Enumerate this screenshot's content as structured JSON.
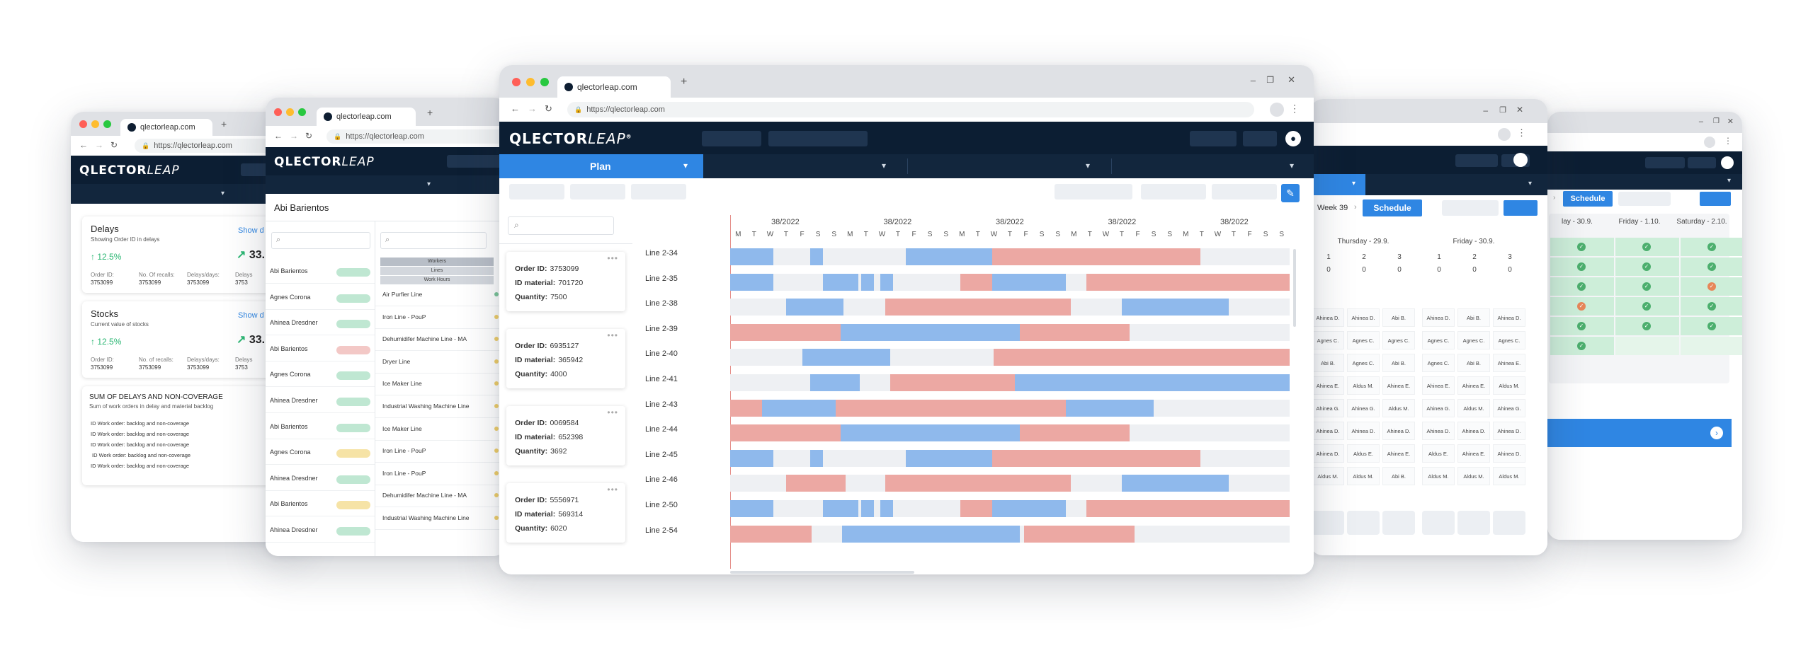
{
  "browser": {
    "url_short": "qlectorleap.com",
    "url_full": "https://qlectorleap.com"
  },
  "brand": {
    "logo_main": "QLECTOR",
    "logo_leap": "LEAP"
  },
  "left_win": {
    "delays": {
      "title": "Delays",
      "subtitle": "Showing Order ID in delays",
      "link": "Show d",
      "percent": "12.5%",
      "big": "33.",
      "metrics": [
        {
          "label": "Order ID:",
          "value": "3753099"
        },
        {
          "label": "No. Of recalls:",
          "value": "3753099"
        },
        {
          "label": "Delays/days:",
          "value": "3753099"
        },
        {
          "label": "Delays",
          "value": "3753"
        }
      ]
    },
    "stocks": {
      "title": "Stocks",
      "subtitle": "Current value of stocks",
      "link": "Show d",
      "percent": "12.5%",
      "big": "33.",
      "metrics": [
        {
          "label": "Order ID:",
          "value": "3753099"
        },
        {
          "label": "No. of recalls:",
          "value": "3753099"
        },
        {
          "label": "Delays/days:",
          "value": "3753099"
        },
        {
          "label": "Delays",
          "value": "3753"
        }
      ]
    },
    "sum": {
      "title": "SUM OF DELAYS AND NON-COVERAGE",
      "subtitle": "Sum of work orders in delay and material backlog",
      "items": [
        "ID Work order: backlog and non-coverage",
        "ID Work order: backlog and non-coverage",
        "ID Work order: backlog and non-coverage",
        "ID Work order: backlog and non-coverage",
        "ID Work order: backlog and non-coverage"
      ]
    }
  },
  "second_win": {
    "person": "Abi Barientos",
    "workers_tabs": [
      "Workers",
      "Lines",
      "Work Hours"
    ],
    "people": [
      "Abi Barientos",
      "Agnes Corona",
      "Ahinea Dresdner",
      "Abi Barientos",
      "Agnes Corona",
      "Ahinea Dresdner",
      "Abi Barientos",
      "Agnes Corona",
      "Ahinea Dresdner",
      "Abi Barientos",
      "Ahinea Dresdner"
    ],
    "people_colors": [
      "#bfe7d2",
      "#bfe7d2",
      "#bfe7d2",
      "#f3c8c6",
      "#bfe7d2",
      "#bfe7d2",
      "#bfe7d2",
      "#f6e3a6",
      "#bfe7d2",
      "#f6e3a6",
      "#bfe7d2"
    ],
    "lines": [
      "Air Purfier Line",
      "Iron Line - PouP",
      "Dehumidifer Machine Line - MA",
      "Dryer Line",
      "Ice Maker Line",
      "Industrial Washing Machine Line",
      "Ice Maker Line",
      "Iron Line - PouP",
      "Iron Line - PouP",
      "Dehumidifer Machine Line - MA",
      "Industrial Washing Machine Line"
    ]
  },
  "main_win": {
    "plan_label": "Plan",
    "weeks": [
      "38/2022",
      "38/2022",
      "38/2022",
      "38/2022",
      "38/2022"
    ],
    "days": [
      "M",
      "T",
      "W",
      "T",
      "F",
      "S",
      "S",
      "M",
      "T",
      "W",
      "T",
      "F",
      "S",
      "S",
      "M",
      "T",
      "W",
      "T",
      "F",
      "S",
      "S",
      "M",
      "T",
      "W",
      "T",
      "F",
      "S",
      "S",
      "M",
      "T",
      "W",
      "T",
      "F",
      "S",
      "S"
    ],
    "orders": [
      {
        "order_label": "Order ID:",
        "order_id": "3753099",
        "mat_label": "ID material:",
        "material": "701720",
        "qty_label": "Quantity:",
        "quantity": "7500"
      },
      {
        "order_label": "Order ID:",
        "order_id": "6935127",
        "mat_label": "ID material:",
        "material": "365942",
        "qty_label": "Quantity:",
        "quantity": "4000"
      },
      {
        "order_label": "Order ID:",
        "order_id": "0069584",
        "mat_label": "ID material:",
        "material": "652398",
        "qty_label": "Quantity:",
        "quantity": "3692"
      },
      {
        "order_label": "Order ID:",
        "order_id": "5556971",
        "mat_label": "ID material:",
        "material": "569314",
        "qty_label": "Quantity:",
        "quantity": "6020"
      }
    ],
    "lines": [
      "Line 2-34",
      "Line 2-35",
      "Line 2-38",
      "Line 2-39",
      "Line 2-40",
      "Line 2-41",
      "Line 2-43",
      "Line 2-44",
      "Line 2-45",
      "Line 2-46",
      "Line 2-50",
      "Line 2-54"
    ],
    "color_blue": "#8fb9ec",
    "color_red": "#eca8a3"
  },
  "right_win": {
    "week": "Week 39",
    "schedule": "Schedule",
    "days": [
      {
        "name": "Thursday - 29.9.",
        "shifts": [
          "1",
          "2",
          "3"
        ],
        "counts": [
          "0",
          "0",
          "0"
        ]
      },
      {
        "name": "Friday - 30.9.",
        "shifts": [
          "1",
          "2",
          "3"
        ],
        "counts": [
          "0",
          "0",
          "0"
        ]
      }
    ],
    "names_cols": [
      [
        "Ahinea D.",
        "Agnes C.",
        "Abi B.",
        "Ahinea E.",
        "Ahinea G.",
        "Ahinea D.",
        "Ahinea D.",
        "Aldus M."
      ],
      [
        "Ahinea D.",
        "Agnes C.",
        "Agnes C.",
        "Aldus M.",
        "Ahinea G.",
        "Ahinea D.",
        "Aldus E.",
        "Aldus M."
      ],
      [
        "Abi B.",
        "Agnes C.",
        "Abi B.",
        "Ahinea E.",
        "Aldus M.",
        "Ahinea D.",
        "Ahinea E.",
        "Abi B."
      ],
      [
        "Ahinea D.",
        "Agnes C.",
        "Agnes C.",
        "Ahinea E.",
        "Ahinea G.",
        "Ahinea D.",
        "Aldus E.",
        "Aldus M."
      ],
      [
        "Abi B.",
        "Agnes C.",
        "Abi B.",
        "Ahinea E.",
        "Aldus M.",
        "Ahinea D.",
        "Ahinea E.",
        "Aldus M."
      ],
      [
        "Ahinea D.",
        "Agnes C.",
        "Ahinea E.",
        "Aldus M.",
        "Ahinea G.",
        "Ahinea D.",
        "Ahinea D.",
        "Aldus M."
      ]
    ]
  },
  "far_win": {
    "schedule": "Schedule",
    "days": [
      "lay - 30.9.",
      "Friday - 1.10.",
      "Saturday - 2.10."
    ]
  }
}
